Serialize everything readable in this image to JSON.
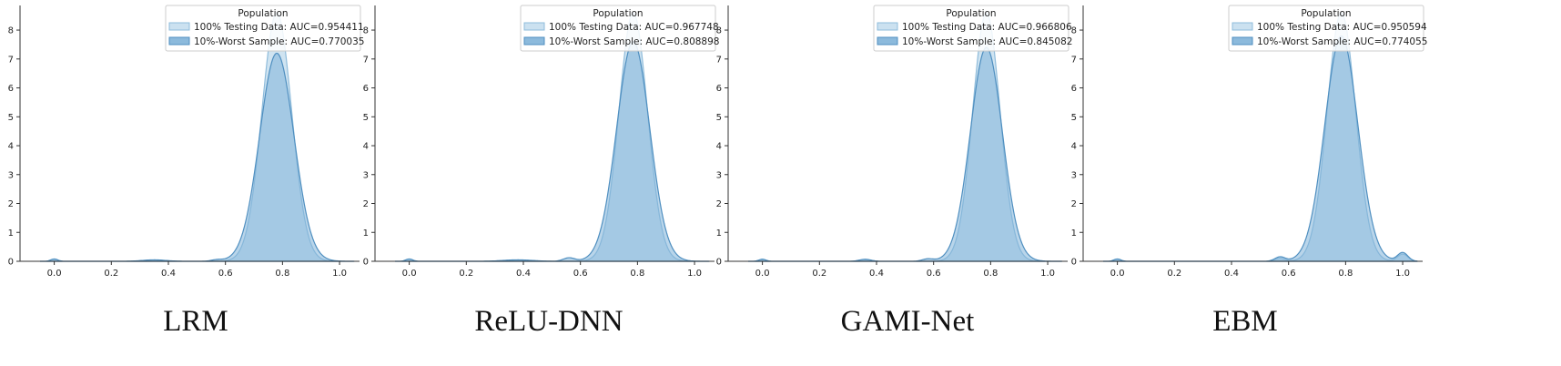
{
  "colors": {
    "full_fill": "#a9cde6",
    "full_edge": "#8fbcdb",
    "worst_fill": "#7fb2d8",
    "worst_edge": "#4f8fc0",
    "axis": "#333333"
  },
  "chart_data": [
    {
      "type": "area",
      "title": "LRM",
      "legend": {
        "title": "Population",
        "placement": "top-right",
        "full_label": "100% Testing Data: AUC=0.954411",
        "worst_label": "10%-Worst Sample: AUC=0.770035"
      },
      "xlim": [
        -0.12,
        1.07
      ],
      "ylim": [
        0,
        8.6
      ],
      "xticks": [
        "0.0",
        "0.2",
        "0.4",
        "0.6",
        "0.8",
        "1.0"
      ],
      "yticks": [
        "0",
        "1",
        "2",
        "3",
        "4",
        "5",
        "6",
        "7",
        "8"
      ],
      "series": [
        {
          "name": "100% Testing Data",
          "peak_x": 0.78,
          "peak_y": 8.6,
          "sd": 0.052,
          "bumps": [
            [
              0.0,
              0.08,
              0.012
            ],
            [
              0.35,
              0.04,
              0.04
            ]
          ]
        },
        {
          "name": "10%-Worst Sample",
          "peak_x": 0.78,
          "peak_y": 7.2,
          "sd": 0.06,
          "bumps": [
            [
              0.0,
              0.08,
              0.012
            ],
            [
              0.35,
              0.05,
              0.04
            ],
            [
              0.57,
              0.05,
              0.02
            ]
          ]
        }
      ]
    },
    {
      "type": "area",
      "title": "ReLU-DNN",
      "legend": {
        "title": "Population",
        "placement": "top-right",
        "full_label": "100% Testing Data: AUC=0.967748",
        "worst_label": "10%-Worst Sample: AUC=0.808898"
      },
      "xlim": [
        -0.12,
        1.07
      ],
      "ylim": [
        0,
        8.6
      ],
      "xticks": [
        "0.0",
        "0.2",
        "0.4",
        "0.6",
        "0.8",
        "1.0"
      ],
      "yticks": [
        "0",
        "1",
        "2",
        "3",
        "4",
        "5",
        "6",
        "7",
        "8"
      ],
      "series": [
        {
          "name": "100% Testing Data",
          "peak_x": 0.785,
          "peak_y": 8.6,
          "sd": 0.05,
          "bumps": [
            [
              0.0,
              0.08,
              0.012
            ],
            [
              0.38,
              0.04,
              0.05
            ]
          ]
        },
        {
          "name": "10%-Worst Sample",
          "peak_x": 0.785,
          "peak_y": 7.6,
          "sd": 0.058,
          "bumps": [
            [
              0.0,
              0.08,
              0.012
            ],
            [
              0.38,
              0.05,
              0.05
            ],
            [
              0.56,
              0.12,
              0.02
            ]
          ]
        }
      ]
    },
    {
      "type": "area",
      "title": "GAMI-Net",
      "legend": {
        "title": "Population",
        "placement": "top-right",
        "full_label": "100% Testing Data: AUC=0.966806",
        "worst_label": "10%-Worst Sample: AUC=0.845082"
      },
      "xlim": [
        -0.12,
        1.07
      ],
      "ylim": [
        0,
        8.6
      ],
      "xticks": [
        "0.0",
        "0.2",
        "0.4",
        "0.6",
        "0.8",
        "1.0"
      ],
      "yticks": [
        "0",
        "1",
        "2",
        "3",
        "4",
        "5",
        "6",
        "7",
        "8"
      ],
      "series": [
        {
          "name": "100% Testing Data",
          "peak_x": 0.785,
          "peak_y": 8.6,
          "sd": 0.048,
          "bumps": [
            [
              0.0,
              0.07,
              0.012
            ],
            [
              0.36,
              0.06,
              0.02
            ]
          ]
        },
        {
          "name": "10%-Worst Sample",
          "peak_x": 0.785,
          "peak_y": 7.4,
          "sd": 0.056,
          "bumps": [
            [
              0.0,
              0.07,
              0.012
            ],
            [
              0.36,
              0.07,
              0.02
            ],
            [
              0.58,
              0.08,
              0.02
            ]
          ]
        }
      ]
    },
    {
      "type": "area",
      "title": "EBM",
      "legend": {
        "title": "Population",
        "placement": "top-right",
        "full_label": "100% Testing Data: AUC=0.950594",
        "worst_label": "10%-Worst Sample: AUC=0.774055"
      },
      "xlim": [
        -0.12,
        1.07
      ],
      "ylim": [
        0,
        8.6
      ],
      "xticks": [
        "0.0",
        "0.2",
        "0.4",
        "0.6",
        "0.8",
        "1.0"
      ],
      "yticks": [
        "0",
        "1",
        "2",
        "3",
        "4",
        "5",
        "6",
        "7",
        "8"
      ],
      "series": [
        {
          "name": "100% Testing Data",
          "peak_x": 0.785,
          "peak_y": 8.6,
          "sd": 0.05,
          "bumps": [
            [
              0.0,
              0.08,
              0.012
            ],
            [
              0.57,
              0.1,
              0.018
            ],
            [
              1.0,
              0.25,
              0.018
            ]
          ]
        },
        {
          "name": "10%-Worst Sample",
          "peak_x": 0.785,
          "peak_y": 7.8,
          "sd": 0.058,
          "bumps": [
            [
              0.0,
              0.08,
              0.012
            ],
            [
              0.57,
              0.15,
              0.018
            ],
            [
              1.0,
              0.3,
              0.018
            ]
          ]
        }
      ]
    }
  ]
}
